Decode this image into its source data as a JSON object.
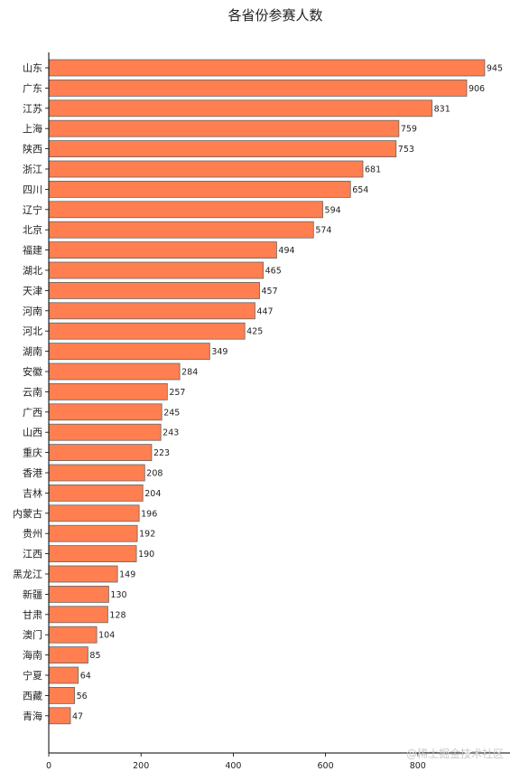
{
  "chart_data": {
    "type": "bar",
    "orientation": "horizontal",
    "title": "各省份参赛人数",
    "categories": [
      "山东",
      "广东",
      "江苏",
      "上海",
      "陕西",
      "浙江",
      "四川",
      "辽宁",
      "北京",
      "福建",
      "湖北",
      "天津",
      "河南",
      "河北",
      "湖南",
      "安徽",
      "云南",
      "广西",
      "山西",
      "重庆",
      "香港",
      "吉林",
      "内蒙古",
      "贵州",
      "江西",
      "黑龙江",
      "新疆",
      "甘肃",
      "澳门",
      "海南",
      "宁夏",
      "西藏",
      "青海"
    ],
    "values": [
      945,
      906,
      831,
      759,
      753,
      681,
      654,
      594,
      574,
      494,
      465,
      457,
      447,
      425,
      349,
      284,
      257,
      245,
      243,
      223,
      208,
      204,
      196,
      192,
      190,
      149,
      130,
      128,
      104,
      85,
      64,
      56,
      47
    ],
    "xlim": [
      0,
      1000
    ],
    "xticks": [
      0,
      200,
      400,
      600,
      800
    ],
    "xlabel": "",
    "ylabel": "",
    "grid": false,
    "bar_color": "#ff7f50",
    "bar_edge_color": "#666666"
  },
  "watermark": "@稀土掘金技术社区"
}
